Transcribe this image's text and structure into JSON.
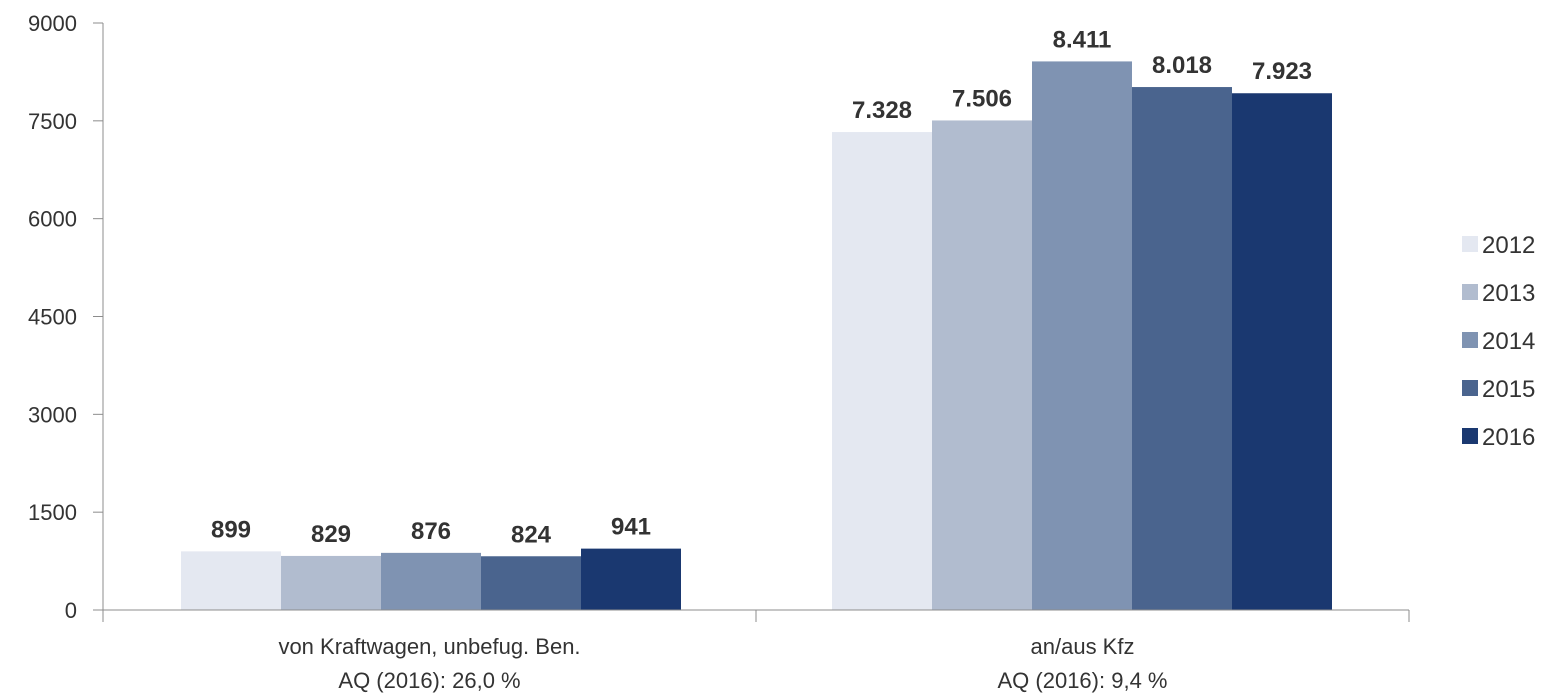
{
  "chart_data": {
    "type": "bar",
    "categories": [
      {
        "line1": "von Kraftwagen, unbefug. Ben.",
        "line2": "AQ (2016): 26,0 %"
      },
      {
        "line1": "an/aus Kfz",
        "line2": "AQ (2016): 9,4 %"
      }
    ],
    "series": [
      {
        "name": "2012",
        "color": "#e4e8f1",
        "values": [
          899,
          7328
        ],
        "labels": [
          "899",
          "7.328"
        ]
      },
      {
        "name": "2013",
        "color": "#b1bccf",
        "values": [
          829,
          7506
        ],
        "labels": [
          "829",
          "7.506"
        ]
      },
      {
        "name": "2014",
        "color": "#7f93b2",
        "values": [
          876,
          8411
        ],
        "labels": [
          "876",
          "8.411"
        ]
      },
      {
        "name": "2015",
        "color": "#4a648e",
        "values": [
          824,
          8018
        ],
        "labels": [
          "824",
          "8.018"
        ]
      },
      {
        "name": "2016",
        "color": "#1a3870",
        "values": [
          941,
          7923
        ],
        "labels": [
          "941",
          "7.923"
        ]
      }
    ],
    "ylim": [
      0,
      9000
    ],
    "yticks": [
      "0",
      "1500",
      "3000",
      "4500",
      "6000",
      "7500",
      "9000"
    ],
    "ytick_values": [
      0,
      1500,
      3000,
      4500,
      6000,
      7500,
      9000
    ],
    "legend_position": "right",
    "grid": false,
    "title": "",
    "xlabel": "",
    "ylabel": ""
  }
}
